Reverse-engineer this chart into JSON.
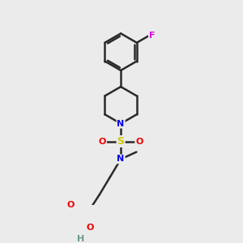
{
  "background_color": "#ebebeb",
  "atom_colors": {
    "C": "#000000",
    "N": "#0000ee",
    "O": "#ee0000",
    "S": "#cccc00",
    "F": "#dd00dd",
    "H": "#6a9a8a"
  },
  "bond_color": "#2a2a2a",
  "bond_width": 1.8,
  "figsize": [
    3.0,
    3.0
  ],
  "dpi": 100
}
